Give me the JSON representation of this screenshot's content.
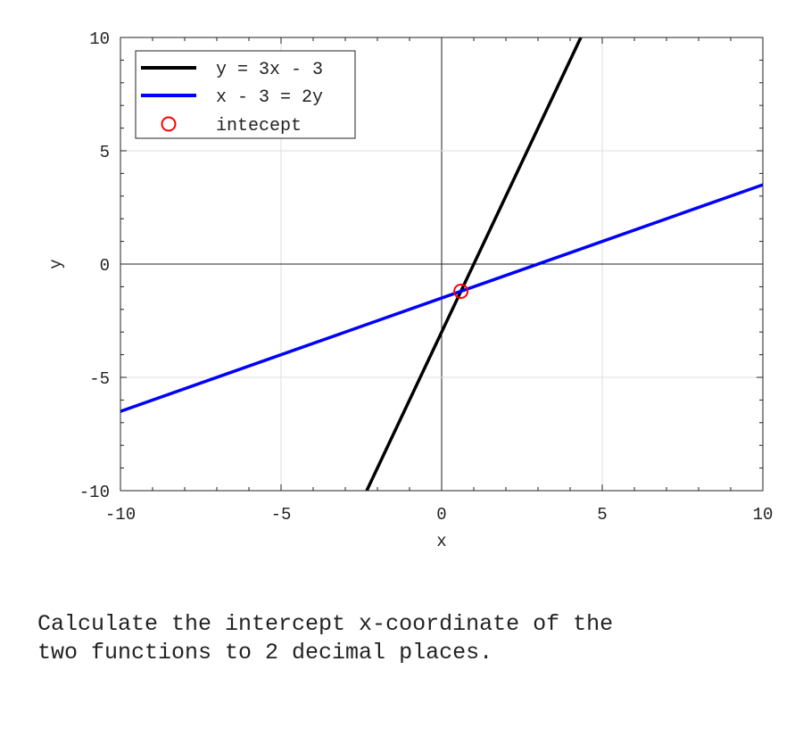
{
  "chart_data": {
    "type": "line",
    "xlabel": "x",
    "ylabel": "y",
    "xlim": [
      -10,
      10
    ],
    "ylim": [
      -10,
      10
    ],
    "xticks": [
      "-10",
      "-5",
      "0",
      "5",
      "10"
    ],
    "yticks": [
      "-10",
      "-5",
      "0",
      "5",
      "10"
    ],
    "xtick_values": [
      -10,
      -5,
      0,
      5,
      10
    ],
    "ytick_values": [
      -10,
      -5,
      0,
      5,
      10
    ],
    "grid": true,
    "legend_position": "top-left",
    "series": [
      {
        "name": "y = 3x - 3",
        "color": "#000000",
        "x": [
          -2.3333,
          4.3333
        ],
        "y": [
          -10,
          10
        ]
      },
      {
        "name": "x - 3 = 2y",
        "color": "#0000ff",
        "x": [
          -10,
          10
        ],
        "y": [
          -6.5,
          3.5
        ]
      }
    ],
    "points": [
      {
        "name": "intecept",
        "color": "#ff0000",
        "x": 0.6,
        "y": -1.2
      }
    ]
  },
  "question": "Calculate the intercept x-coordinate of the\ntwo functions to 2 decimal places."
}
